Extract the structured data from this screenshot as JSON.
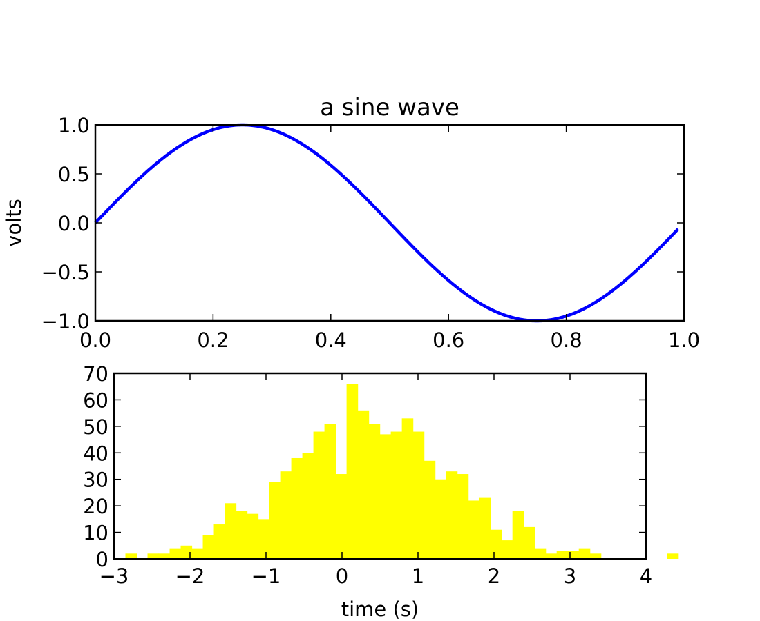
{
  "chart_data": [
    {
      "type": "line",
      "title": "a sine wave",
      "xlabel": "",
      "ylabel": "volts",
      "xlim": [
        0.0,
        1.0
      ],
      "ylim": [
        -1.0,
        1.0
      ],
      "xticks": [
        "0.0",
        "0.2",
        "0.4",
        "0.6",
        "0.8",
        "1.0"
      ],
      "yticks": [
        "1.0",
        "0.5",
        "0.0",
        "−0.5",
        "−1.0"
      ],
      "series": [
        {
          "function": "sin(2*pi*x)",
          "x_range": [
            0.0,
            0.99
          ],
          "color": "#0000ff"
        }
      ],
      "grid": false
    },
    {
      "type": "bar",
      "title": "",
      "xlabel": "time (s)",
      "ylabel": "",
      "xlim": [
        -3,
        4
      ],
      "ylim": [
        0,
        70
      ],
      "xticks": [
        "−3",
        "−2",
        "−1",
        "0",
        "1",
        "2",
        "3",
        "4"
      ],
      "yticks": [
        "0",
        "10",
        "20",
        "30",
        "40",
        "50",
        "60",
        "70"
      ],
      "color": "#ffff00",
      "bin_start": -2.85,
      "bin_width": 0.1455,
      "counts": [
        2,
        0,
        2,
        2,
        4,
        5,
        4,
        9,
        13,
        21,
        18,
        17,
        15,
        29,
        33,
        38,
        40,
        48,
        51,
        32,
        66,
        56,
        51,
        47,
        48,
        53,
        48,
        37,
        30,
        33,
        32,
        22,
        23,
        11,
        7,
        18,
        12,
        4,
        2,
        3,
        3,
        4,
        2,
        0,
        0,
        0,
        0,
        0,
        0,
        2
      ],
      "grid": false
    }
  ]
}
